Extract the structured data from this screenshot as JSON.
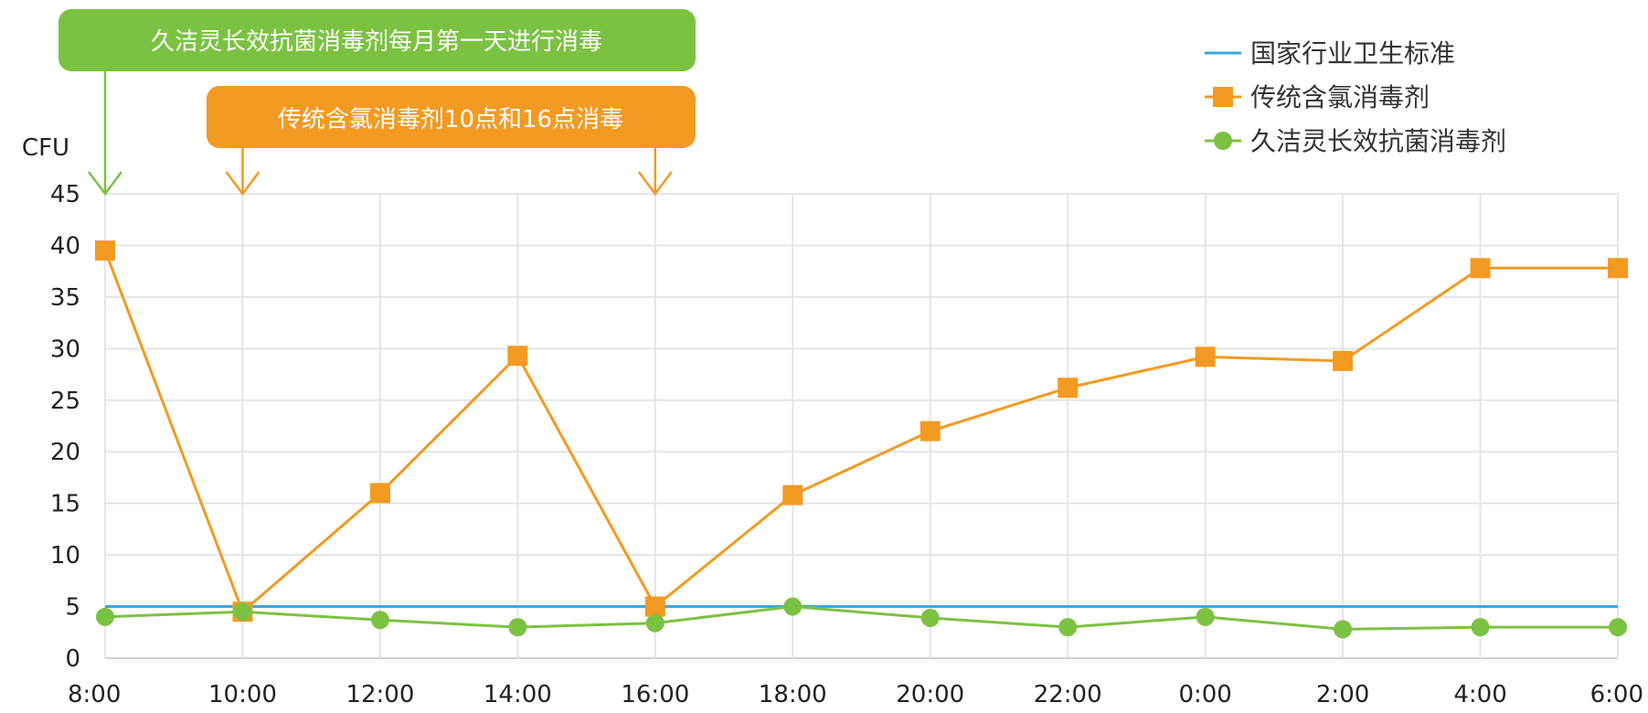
{
  "chart_data": {
    "type": "line",
    "ylabel": "CFU",
    "xlabel": "",
    "categories": [
      "8:00",
      "10:00",
      "12:00",
      "14:00",
      "16:00",
      "18:00",
      "20:00",
      "22:00",
      "0:00",
      "2:00",
      "4:00",
      "6:00"
    ],
    "ylim": [
      0,
      45
    ],
    "yticks": [
      0,
      5,
      10,
      15,
      20,
      25,
      30,
      35,
      40,
      45
    ],
    "grid": true,
    "legend_position": "top-right",
    "series": [
      {
        "name": "国家行业卫生标准",
        "color": "#3aa8dc",
        "marker": "none",
        "values": [
          5,
          5,
          5,
          5,
          5,
          5,
          5,
          5,
          5,
          5,
          5,
          5
        ]
      },
      {
        "name": "传统含氯消毒剂",
        "color": "#f39a22",
        "marker": "square",
        "values": [
          39.5,
          4.5,
          16,
          29.3,
          5,
          15.8,
          22,
          26.2,
          29.2,
          28.8,
          37.8,
          37.8
        ]
      },
      {
        "name": "久洁灵长效抗菌消毒剂",
        "color": "#7cc242",
        "marker": "circle",
        "values": [
          4,
          4.5,
          3.7,
          3,
          3.4,
          5,
          3.9,
          3,
          4,
          2.8,
          3,
          3
        ]
      }
    ],
    "annotations": [
      {
        "text": "久洁灵长效抗菌消毒剂每月第一天进行消毒",
        "color": "#7cc242",
        "points_to": [
          "8:00"
        ]
      },
      {
        "text": "传统含氯消毒剂10点和16点消毒",
        "color": "#f39a22",
        "points_to": [
          "10:00",
          "16:00"
        ]
      }
    ]
  }
}
